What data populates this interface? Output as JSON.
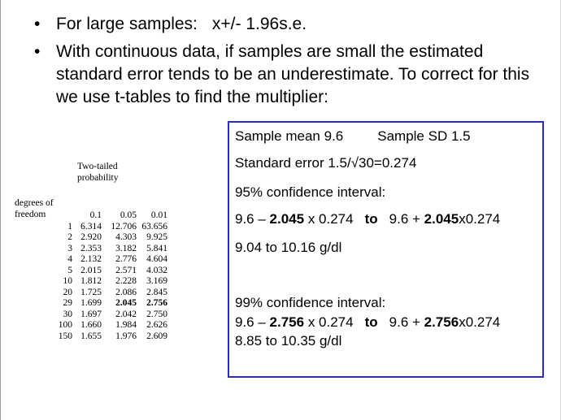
{
  "bullets": [
    {
      "text": "For large samples:",
      "formula": "x+/- 1.96s.e."
    },
    {
      "text": "With continuous data, if samples are small the estimated standard error tends to be an underestimate. To correct for this we use  t-tables to find the multiplier:"
    }
  ],
  "ttable": {
    "prob_header_line1": "Two-tailed",
    "prob_header_line2": "probability",
    "dof_header_line1": "degrees of",
    "dof_header_line2": "freedom",
    "columns": [
      "0.1",
      "0.05",
      "0.01"
    ],
    "rows": [
      {
        "df": "1",
        "v": [
          "6.314",
          "12.706",
          "63.656"
        ]
      },
      {
        "df": "2",
        "v": [
          "2.920",
          "4.303",
          "9.925"
        ]
      },
      {
        "df": "3",
        "v": [
          "2.353",
          "3.182",
          "5.841"
        ]
      },
      {
        "df": "4",
        "v": [
          "2.132",
          "2.776",
          "4.604"
        ]
      },
      {
        "df": "5",
        "v": [
          "2.015",
          "2.571",
          "4.032"
        ]
      },
      {
        "df": "10",
        "v": [
          "1.812",
          "2.228",
          "3.169"
        ]
      },
      {
        "df": "20",
        "v": [
          "1.725",
          "2.086",
          "2.845"
        ]
      },
      {
        "df": "29",
        "v": [
          "1.699",
          "2.045",
          "2.756"
        ]
      },
      {
        "df": "30",
        "v": [
          "1.697",
          "2.042",
          "2.750"
        ]
      },
      {
        "df": "100",
        "v": [
          "1.660",
          "1.984",
          "2.626"
        ]
      },
      {
        "df": "150",
        "v": [
          "1.655",
          "1.976",
          "2.609"
        ]
      }
    ]
  },
  "box": {
    "sample_mean": "Sample mean 9.6",
    "sample_sd": "Sample SD 1.5",
    "standard_error": "Standard error 1.5/√30=0.274",
    "ci95_title": "95% confidence interval:",
    "ci95_a": "9.6 – ",
    "ci95_b": "2.045",
    "ci95_c": " x 0.274",
    "ci95_to": "to",
    "ci95_d": "9.6 + ",
    "ci95_e": "2.045",
    "ci95_f": "x0.274",
    "ci95_result": "9.04 to 10.16 g/dl",
    "ci99_title": "99% confidence interval:",
    "ci99_a": "9.6 – ",
    "ci99_b": "2.756",
    "ci99_c": " x 0.274",
    "ci99_to": "to",
    "ci99_d": "9.6 + ",
    "ci99_e": "2.756",
    "ci99_f": "x0.274",
    "ci99_result": "8.85 to 10.35 g/dl"
  },
  "colors": {
    "box_border": "#2a2ad4"
  }
}
